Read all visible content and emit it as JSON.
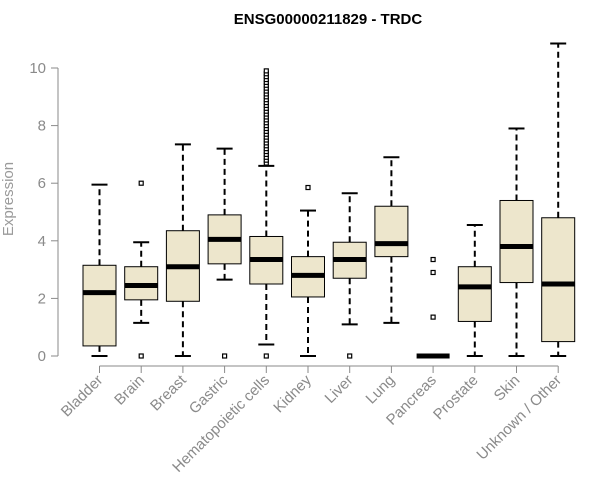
{
  "chart_data": {
    "type": "boxplot",
    "title": "ENSG00000211829 - TRDC",
    "xlabel": "",
    "ylabel": "Expression",
    "ylim": [
      0,
      10.5
    ],
    "yticks": [
      0,
      2,
      4,
      6,
      8,
      10
    ],
    "grid": false,
    "legend": "none",
    "box_fill": "#ede6cc",
    "categories": [
      "Bladder",
      "Brain",
      "Breast",
      "Gastric",
      "Hematopoietic cells",
      "Kidney",
      "Liver",
      "Lung",
      "Pancreas",
      "Prostate",
      "Skin",
      "Unknown / Other"
    ],
    "boxes": [
      {
        "category": "Bladder",
        "whisker_low": 0.0,
        "q1": 0.35,
        "median": 2.2,
        "q3": 3.15,
        "whisker_high": 5.95,
        "outliers": []
      },
      {
        "category": "Brain",
        "whisker_low": 1.15,
        "q1": 1.95,
        "median": 2.45,
        "q3": 3.1,
        "whisker_high": 3.95,
        "outliers": [
          0.0,
          6.0
        ]
      },
      {
        "category": "Breast",
        "whisker_low": 0.0,
        "q1": 1.9,
        "median": 3.1,
        "q3": 4.35,
        "whisker_high": 7.35,
        "outliers": []
      },
      {
        "category": "Gastric",
        "whisker_low": 2.65,
        "q1": 3.2,
        "median": 4.05,
        "q3": 4.9,
        "whisker_high": 7.2,
        "outliers": [
          0.0
        ]
      },
      {
        "category": "Hematopoietic cells",
        "whisker_low": 0.4,
        "q1": 2.5,
        "median": 3.35,
        "q3": 4.15,
        "whisker_high": 6.6,
        "outliers": [
          0.0,
          6.7,
          6.8,
          6.9,
          7.0,
          7.1,
          7.2,
          7.3,
          7.4,
          7.5,
          7.6,
          7.7,
          7.8,
          7.9,
          8.0,
          8.1,
          8.2,
          8.3,
          8.4,
          8.5,
          8.6,
          8.7,
          8.8,
          8.9,
          9.0,
          9.1,
          9.2,
          9.3,
          9.4,
          9.5,
          9.6,
          9.7,
          9.8,
          9.9
        ]
      },
      {
        "category": "Kidney",
        "whisker_low": 0.0,
        "q1": 2.05,
        "median": 2.8,
        "q3": 3.45,
        "whisker_high": 5.05,
        "outliers": [
          5.85
        ]
      },
      {
        "category": "Liver",
        "whisker_low": 1.1,
        "q1": 2.7,
        "median": 3.35,
        "q3": 3.95,
        "whisker_high": 5.65,
        "outliers": [
          0.0
        ]
      },
      {
        "category": "Lung",
        "whisker_low": 1.15,
        "q1": 3.45,
        "median": 3.9,
        "q3": 5.2,
        "whisker_high": 6.9,
        "outliers": []
      },
      {
        "category": "Pancreas",
        "whisker_low": 0.0,
        "q1": 0.0,
        "median": 0.0,
        "q3": 0.0,
        "whisker_high": 0.0,
        "outliers": [
          1.35,
          2.9,
          3.35
        ]
      },
      {
        "category": "Prostate",
        "whisker_low": 0.0,
        "q1": 1.2,
        "median": 2.4,
        "q3": 3.1,
        "whisker_high": 4.55,
        "outliers": []
      },
      {
        "category": "Skin",
        "whisker_low": 0.0,
        "q1": 2.55,
        "median": 3.8,
        "q3": 5.4,
        "whisker_high": 7.9,
        "outliers": []
      },
      {
        "category": "Unknown / Other",
        "whisker_low": 0.0,
        "q1": 0.5,
        "median": 2.5,
        "q3": 4.8,
        "whisker_high": 10.85,
        "outliers": []
      }
    ]
  }
}
